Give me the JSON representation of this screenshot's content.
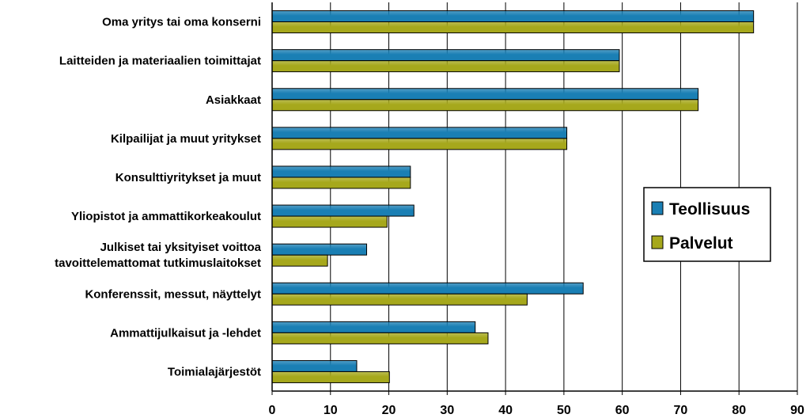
{
  "chart_data": {
    "type": "bar",
    "orientation": "horizontal",
    "categories": [
      [
        "Oma yritys tai oma konserni"
      ],
      [
        "Laitteiden ja materiaalien toimittajat"
      ],
      [
        "Asiakkaat"
      ],
      [
        "Kilpailijat ja muut yritykset"
      ],
      [
        "Konsulttiyritykset ja muut"
      ],
      [
        "Yliopistot ja ammattikorkeakoulut"
      ],
      [
        "Julkiset tai yksityiset voittoa",
        "tavoittelemattomat tutkimuslaitokset"
      ],
      [
        "Konferenssit, messut, näyttelyt"
      ],
      [
        "Ammattijulkaisut ja -lehdet"
      ],
      [
        "Toimialajärjestöt"
      ]
    ],
    "series": [
      {
        "name": "Teollisuus",
        "color": "#1a7fb4",
        "values": [
          82.5,
          59.5,
          73,
          50.5,
          23.7,
          24.3,
          16.2,
          53.3,
          34.8,
          14.5
        ]
      },
      {
        "name": "Palvelut",
        "color": "#a6a81c",
        "values": [
          82.5,
          59.5,
          73,
          50.5,
          23.7,
          19.7,
          9.5,
          43.7,
          37,
          20.1
        ]
      }
    ],
    "xlim": [
      0,
      90
    ],
    "xticks": [
      "0",
      "10",
      "20",
      "30",
      "40",
      "50",
      "60",
      "70",
      "80",
      "90"
    ],
    "grid": "vertical",
    "legend_position": "right"
  }
}
